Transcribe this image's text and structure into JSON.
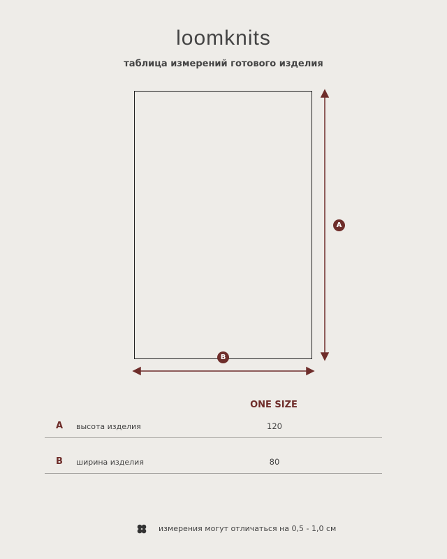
{
  "header": {
    "brand": "loomknits",
    "subtitle": "таблица измерений готового изделия"
  },
  "diagram": {
    "height_marker": "A",
    "width_marker": "B",
    "accent_color": "#6e2d2a"
  },
  "table": {
    "column_header": "ONE SIZE",
    "rows": [
      {
        "letter": "A",
        "label": "высота изделия",
        "value": "120"
      },
      {
        "letter": "B",
        "label": "ширина изделия",
        "value": "80"
      }
    ]
  },
  "footer": {
    "icon": "clover-icon",
    "note": "измерения могут отличаться на 0,5 - 1,0 см"
  }
}
